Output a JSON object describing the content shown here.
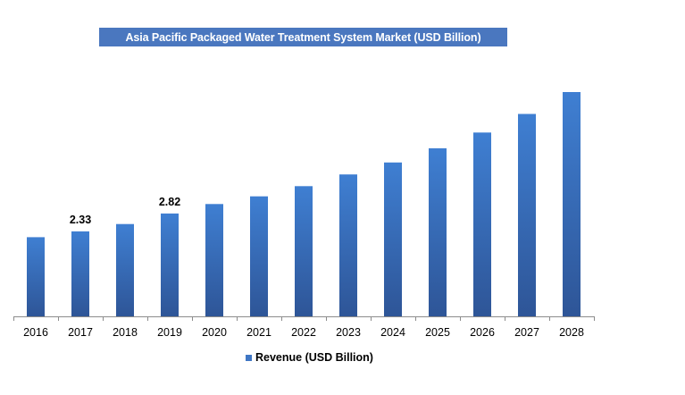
{
  "chart_data": {
    "type": "bar",
    "title": "Asia Pacific Packaged Water Treatment System Market (USD Billion)",
    "categories": [
      "2016",
      "2017",
      "2018",
      "2019",
      "2020",
      "2021",
      "2022",
      "2023",
      "2024",
      "2025",
      "2026",
      "2027",
      "2028"
    ],
    "series": [
      {
        "name": "Revenue (USD Billion)",
        "values": [
          2.17,
          2.33,
          2.53,
          2.82,
          3.08,
          3.29,
          3.57,
          3.89,
          4.22,
          4.61,
          5.04,
          5.55,
          6.15
        ],
        "color": "#3f76c4"
      }
    ],
    "data_labels": [
      {
        "category": "2017",
        "text": "2.33"
      },
      {
        "category": "2019",
        "text": "2.82"
      }
    ],
    "ylim": [
      0,
      6.15
    ],
    "yaxis_visible": false,
    "grid": false,
    "legend_position": "bottom-center",
    "colors": {
      "bar_top": "#3f7fd2",
      "bar_bottom": "#2e5597",
      "title_bg": "#4a77bf",
      "title_text": "#ffffff"
    }
  }
}
